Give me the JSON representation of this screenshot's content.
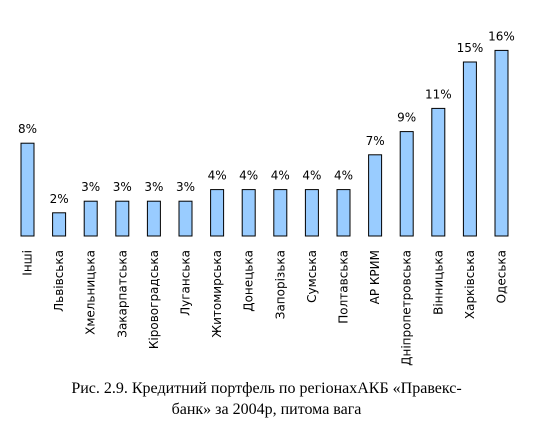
{
  "chart_data": {
    "type": "bar",
    "categories": [
      "Інші",
      "Львівська",
      "Хмельницька",
      "Закарпатська",
      "Кіровоградська",
      "Луганська",
      "Житомирська",
      "Донецька",
      "Запорізька",
      "Сумська",
      "Полтавська",
      "АР КРИМ",
      "Дніпропетровська",
      "Вінницька",
      "Харківська",
      "Одеська"
    ],
    "values": [
      8,
      2,
      3,
      3,
      3,
      3,
      4,
      4,
      4,
      4,
      4,
      7,
      9,
      11,
      15,
      16
    ],
    "value_labels": [
      "8%",
      "2%",
      "3%",
      "3%",
      "3%",
      "3%",
      "4%",
      "4%",
      "4%",
      "4%",
      "4%",
      "7%",
      "9%",
      "11%",
      "15%",
      "16%"
    ],
    "title": "",
    "xlabel": "",
    "ylabel": "",
    "ylim": [
      0,
      16
    ],
    "grid": false,
    "bar_color": "#99ccff"
  },
  "caption": {
    "line1": "Рис. 2.9. Кредитний портфель по регіонахАКБ «Правекс-",
    "line2": "банк» за 2004р, питома вага"
  }
}
